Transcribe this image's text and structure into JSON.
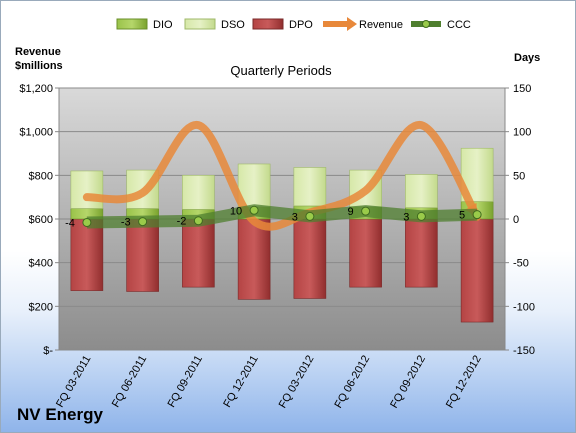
{
  "company": "NV Energy",
  "chart_data": {
    "type": "bar",
    "title": "Quarterly Periods",
    "ylabel_left": [
      "Revenue",
      "$millions"
    ],
    "ylabel_right": "Days",
    "categories": [
      "FQ 03-2011",
      "FQ 06-2011",
      "FQ 09-2011",
      "FQ 12-2011",
      "FQ 03-2012",
      "FQ 06-2012",
      "FQ 09-2012",
      "FQ 12-2012"
    ],
    "left_ticks": [
      "$-",
      "$200",
      "$400",
      "$600",
      "$800",
      "$1,000",
      "$1,200"
    ],
    "left_ylim": [
      0,
      1200
    ],
    "right_ticks": [
      "-150",
      "-100",
      "-50",
      "0",
      "50",
      "100",
      "150"
    ],
    "right_ylim": [
      -150,
      150
    ],
    "series": [
      {
        "name": "DIO",
        "axis": "right",
        "values": [
          12,
          12,
          11,
          14,
          15,
          14,
          13,
          20
        ],
        "color": "#8cb63a"
      },
      {
        "name": "DSO",
        "axis": "right",
        "values": [
          43,
          44,
          39,
          49,
          44,
          42,
          38,
          61
        ],
        "color": "#d4e6a8"
      },
      {
        "name": "DPO",
        "axis": "right",
        "values": [
          -82,
          -83,
          -78,
          -92,
          -91,
          -78,
          -78,
          -118
        ],
        "color": "#a33a3a"
      },
      {
        "name": "Revenue",
        "axis": "left",
        "values": [
          700,
          720,
          1030,
          590,
          630,
          730,
          1030,
          610
        ],
        "color": "#e8883a"
      },
      {
        "name": "CCC",
        "axis": "right",
        "values": [
          -4,
          -3,
          -2,
          10,
          3,
          9,
          3,
          5
        ],
        "color": "#5a8a3a"
      }
    ],
    "ccc_labels": [
      "-4",
      "-3",
      "-2",
      "10",
      "3",
      "9",
      "3",
      "5"
    ],
    "legend": [
      "DIO",
      "DSO",
      "DPO",
      "Revenue",
      "CCC"
    ],
    "legend_position": "top"
  }
}
